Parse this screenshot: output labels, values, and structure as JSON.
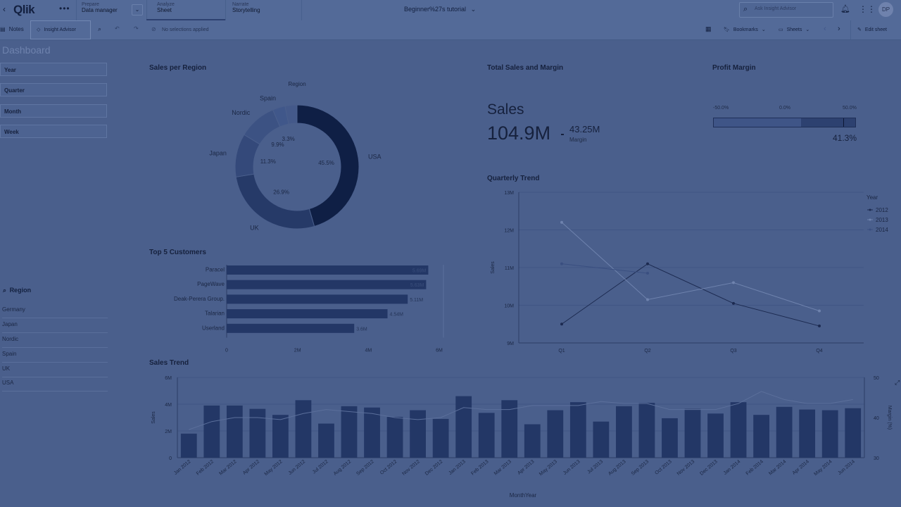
{
  "topbar": {
    "logo": "Qlik",
    "tabs": [
      {
        "label": "Prepare",
        "sub": "Data manager"
      },
      {
        "label": "Analyze",
        "sub": "Sheet"
      },
      {
        "label": "Narrate",
        "sub": "Storytelling"
      }
    ],
    "app_title": "Beginner%27s tutorial",
    "search_placeholder": "Ask Insight Advisor",
    "avatar": "DP"
  },
  "toolbar": {
    "notes": "Notes",
    "insight_advisor": "Insight Advisor",
    "selections": "No selections applied",
    "bookmarks": "Bookmarks",
    "sheets": "Sheets",
    "edit_sheet": "Edit sheet"
  },
  "sheet": {
    "title": "Dashboard"
  },
  "filters": [
    "Year",
    "Quarter",
    "Month",
    "Week"
  ],
  "region_list": {
    "title": "Region",
    "items": [
      "Germany",
      "Japan",
      "Nordic",
      "Spain",
      "UK",
      "USA"
    ]
  },
  "kpi": {
    "panel_title": "Total Sales and Margin",
    "label": "Sales",
    "value": "104.9M",
    "sub_value": "43.25M",
    "sub_label": "Margin"
  },
  "profit_margin": {
    "title": "Profit Margin",
    "ticks": [
      "-50.0%",
      "0.0%",
      "50.0%"
    ],
    "value_label": "41.3%",
    "value": 41.3,
    "range": [
      -50,
      50
    ]
  },
  "chart_data": [
    {
      "type": "pie",
      "title": "Sales per Region",
      "legend_title": "Region",
      "categories": [
        "USA",
        "UK",
        "Japan",
        "Nordic",
        "Spain",
        "Germany"
      ],
      "labels": [
        "USA",
        "UK",
        "Japan",
        "Nordic",
        "Spain",
        ""
      ],
      "values": [
        45.5,
        26.9,
        11.3,
        9.9,
        3.3,
        3.1
      ],
      "value_labels": [
        "45.5%",
        "26.9%",
        "11.3%",
        "9.9%",
        "3.3%",
        ""
      ],
      "colors": [
        "#0f1f45",
        "#263a68",
        "#34497a",
        "#3c5283",
        "#40578a",
        "#44598a"
      ]
    },
    {
      "type": "bar",
      "title": "Top 5 Customers",
      "orientation": "horizontal",
      "categories": [
        "Paracel",
        "PageWave",
        "Deak-Perera Group.",
        "Talarian",
        "Userland"
      ],
      "values": [
        5.69,
        5.63,
        5.11,
        4.54,
        3.6
      ],
      "value_labels": [
        "5.69M",
        "5.63M",
        "5.11M",
        "4.54M",
        "3.6M"
      ],
      "xticks": [
        "0",
        "2M",
        "4M",
        "6M"
      ],
      "xlim": [
        0,
        6
      ],
      "color": "#233766"
    },
    {
      "type": "line",
      "title": "Quarterly Trend",
      "ylabel": "Sales",
      "legend_title": "Year",
      "categories": [
        "Q1",
        "Q2",
        "Q3",
        "Q4"
      ],
      "yticks": [
        "9M",
        "10M",
        "11M",
        "12M",
        "13M"
      ],
      "ylim": [
        9,
        13
      ],
      "series": [
        {
          "name": "2012",
          "values": [
            9.5,
            11.1,
            10.05,
            9.45
          ],
          "color": "#1c2a50"
        },
        {
          "name": "2013",
          "values": [
            12.2,
            10.15,
            10.6,
            9.85
          ],
          "color": "#6f83ae"
        },
        {
          "name": "2014",
          "values": [
            11.1,
            10.85,
            null,
            null
          ],
          "color": "#3a4f80"
        }
      ]
    },
    {
      "type": "bar",
      "title": "Sales Trend",
      "xlabel": "MonthYear",
      "ylabel": "Sales",
      "y2label": "Margin (%)",
      "categories": [
        "Jan 2012",
        "Feb 2012",
        "Mar 2012",
        "Apr 2012",
        "May 2012",
        "Jun 2012",
        "Jul 2012",
        "Aug 2012",
        "Sep 2012",
        "Oct 2012",
        "Nov 2012",
        "Dec 2012",
        "Jan 2013",
        "Feb 2013",
        "Mar 2013",
        "Apr 2013",
        "May 2013",
        "Jun 2013",
        "Jul 2013",
        "Aug 2013",
        "Sep 2013",
        "Oct 2013",
        "Nov 2013",
        "Dec 2013",
        "Jan 2014",
        "Feb 2014",
        "Mar 2014",
        "Apr 2014",
        "May 2014",
        "Jun 2014"
      ],
      "values": [
        1.8,
        3.9,
        3.9,
        3.65,
        3.2,
        4.3,
        2.55,
        3.85,
        3.75,
        3.05,
        3.55,
        2.9,
        4.6,
        3.35,
        4.3,
        2.5,
        3.55,
        4.15,
        2.7,
        3.85,
        4.1,
        2.95,
        3.65,
        3.3,
        4.15,
        3.2,
        3.8,
        3.6,
        3.55,
        3.7
      ],
      "yticks": [
        "0",
        "2M",
        "4M",
        "6M"
      ],
      "ylim": [
        0,
        6
      ],
      "y2ticks": [
        "30",
        "40",
        "50"
      ],
      "y2lim": [
        30,
        50
      ],
      "line_values": [
        37,
        39,
        40,
        40,
        39.5,
        41,
        42,
        41.5,
        41,
        40,
        39.5,
        40,
        42.5,
        42,
        42,
        43,
        43,
        43,
        44,
        43.5,
        43.5,
        42,
        42,
        42,
        43.5,
        46.5,
        44.5,
        43.5,
        43.5,
        44.5
      ],
      "bar_color": "#233766",
      "line_color": "#5b6f9b"
    }
  ]
}
